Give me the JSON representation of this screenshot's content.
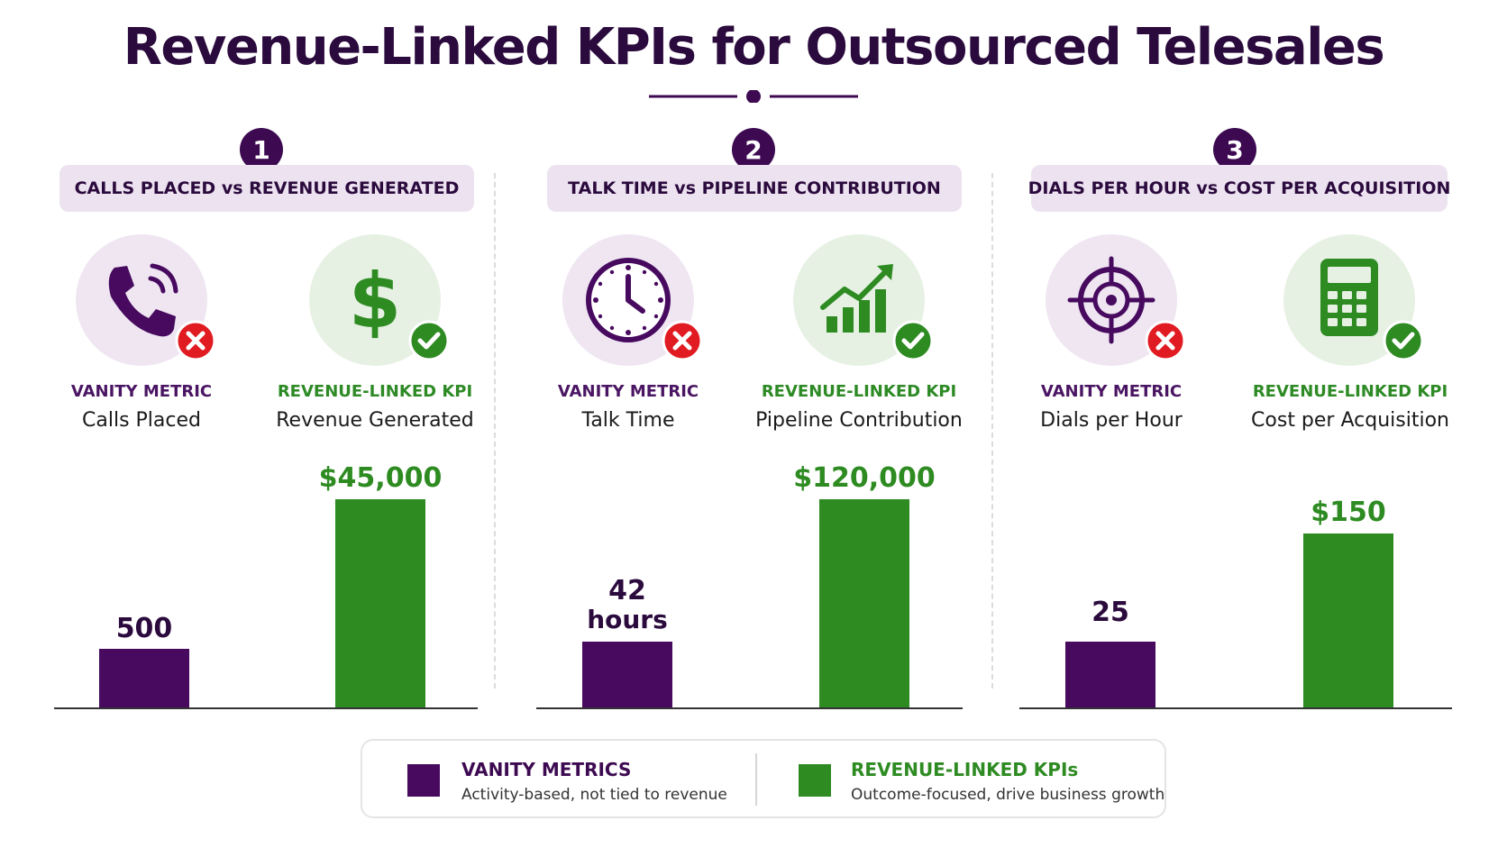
{
  "title": "Revenue-Linked KPIs for Outsourced Telesales",
  "colors": {
    "vanity": "#470a5f",
    "revenue": "#2e8b22",
    "dark": "#2b0a3d"
  },
  "panels": [
    {
      "number": "1",
      "heading": "CALLS PLACED vs REVENUE GENERATED",
      "vanity": {
        "category": "VANITY METRIC",
        "name": "Calls Placed",
        "icon": "phone-icon",
        "label": "500"
      },
      "revenue": {
        "category": "REVENUE-LINKED KPI",
        "name": "Revenue Generated",
        "icon": "dollar-icon",
        "label": "$45,000"
      }
    },
    {
      "number": "2",
      "heading": "TALK TIME vs PIPELINE CONTRIBUTION",
      "vanity": {
        "category": "VANITY METRIC",
        "name": "Talk Time",
        "icon": "clock-icon",
        "label_line1": "42",
        "label_line2": "hours"
      },
      "revenue": {
        "category": "REVENUE-LINKED KPI",
        "name": "Pipeline Contribution",
        "icon": "growth-chart-icon",
        "label": "$120,000"
      }
    },
    {
      "number": "3",
      "heading": "DIALS PER HOUR vs COST PER ACQUISITION",
      "vanity": {
        "category": "VANITY METRIC",
        "name": "Dials per Hour",
        "icon": "target-icon",
        "label": "25"
      },
      "revenue": {
        "category": "REVENUE-LINKED KPI",
        "name": "Cost per Acquisition",
        "icon": "calculator-icon",
        "label": "$150"
      }
    }
  ],
  "chart_data": [
    {
      "type": "bar",
      "categories": [
        "Calls Placed",
        "Revenue Generated"
      ],
      "values": [
        500,
        45000
      ],
      "labels": [
        "500",
        "$45,000"
      ]
    },
    {
      "type": "bar",
      "categories": [
        "Talk Time",
        "Pipeline Contribution"
      ],
      "values": [
        42,
        120000
      ],
      "labels": [
        "42 hours",
        "$120,000"
      ]
    },
    {
      "type": "bar",
      "categories": [
        "Dials per Hour",
        "Cost per Acquisition"
      ],
      "values": [
        25,
        150
      ],
      "labels": [
        "25",
        "$150"
      ]
    }
  ],
  "legend": {
    "vanity": {
      "title": "VANITY METRICS",
      "desc": "Activity-based, not tied to revenue"
    },
    "revenue": {
      "title": "REVENUE-LINKED KPIs",
      "desc": "Outcome-focused, drive business growth"
    }
  }
}
